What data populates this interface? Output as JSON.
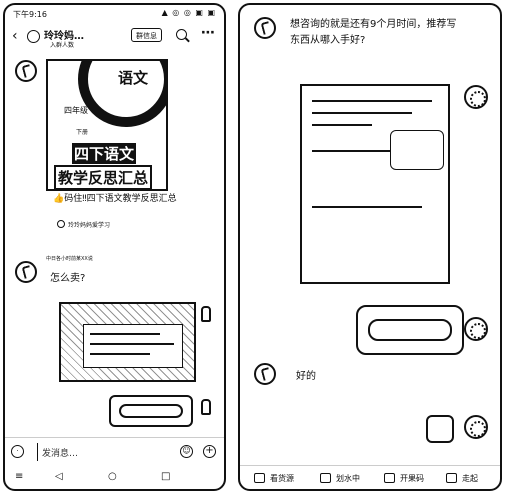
{
  "left": {
    "status": {
      "time": "下午9:16",
      "indicators": "▲ ◎ ◎ ▣ ▣"
    },
    "header": {
      "title": "玲玲妈…",
      "subtitle": "入群人数",
      "group_button": "群信息",
      "icons": [
        "back-icon",
        "search-icon",
        "more-icon"
      ]
    },
    "card": {
      "poster_char": "语文",
      "poster_grade": "四年级",
      "poster_term": "下册",
      "poster_line1": "四下语文",
      "poster_line2": "教学反思汇总",
      "caption": "👍码住‼四下语文教学反思汇总",
      "source": "玲玲妈妈爱学习"
    },
    "meta": "中日各小时前某XX说",
    "question": "怎么卖?",
    "input_placeholder": "发消息…",
    "nav": [
      "◁",
      "○",
      "□"
    ]
  },
  "right": {
    "question": "想咨询的就是还有9个月时间，推荐写东西从哪入手好?",
    "reply": "好的",
    "menu": [
      {
        "label": "看货源",
        "icon": "shop-icon"
      },
      {
        "label": "划水中",
        "icon": "chat-icon"
      },
      {
        "label": "开果码",
        "icon": "code-icon"
      },
      {
        "label": "走起",
        "icon": "go-icon"
      }
    ]
  }
}
